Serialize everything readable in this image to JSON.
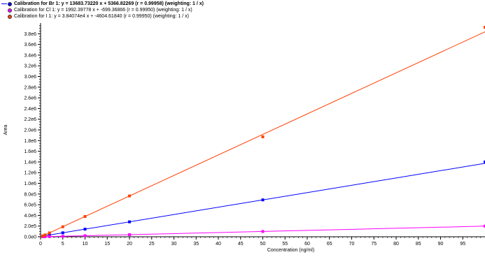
{
  "chart_data": {
    "type": "scatter",
    "xlabel": "Concentration (ng/ml)",
    "ylabel": "Area",
    "xlim": [
      0,
      100
    ],
    "ylim": [
      0,
      4000000
    ],
    "x_ticks": [
      0,
      5,
      10,
      15,
      20,
      25,
      30,
      35,
      40,
      45,
      50,
      55,
      60,
      65,
      70,
      75,
      80,
      85,
      90,
      95
    ],
    "y_ticks": [
      0,
      200000,
      400000,
      600000,
      800000,
      1000000,
      1200000,
      1400000,
      1600000,
      1800000,
      2000000,
      2200000,
      2400000,
      2600000,
      2800000,
      3000000,
      3200000,
      3400000,
      3600000,
      3800000
    ],
    "y_tick_labels": [
      "0.0e0",
      "2.0e5",
      "4.0e5",
      "6.0e5",
      "8.0e5",
      "1.0e6",
      "1.2e6",
      "1.4e6",
      "1.6e6",
      "1.8e6",
      "2.0e6",
      "2.2e6",
      "2.4e6",
      "2.6e6",
      "2.8e6",
      "3.0e6",
      "3.2e6",
      "3.4e6",
      "3.6e6",
      "3.8e6"
    ],
    "series": [
      {
        "name": "Calibration for Br 1: y = 13683.73220 x + 5366.82269 (r = 0.99958) (weighting: 1 / x)",
        "color": "#0000ff",
        "slope": 13683.7322,
        "intercept": 5366.82269,
        "x": [
          0.5,
          1,
          2,
          5,
          10,
          20,
          50,
          100
        ],
        "y": [
          12000,
          19000,
          33000,
          74000,
          142000,
          279000,
          690000,
          1400000
        ]
      },
      {
        "name": "Calibration for Cl 1: y = 1992.39778 x + -699.36866 (r = 0.99950) (weighting: 1 / x)",
        "color": "#ff00ff",
        "slope": 1992.39778,
        "intercept": -699.36866,
        "x": [
          0.5,
          1,
          2,
          5,
          10,
          20,
          50,
          100
        ],
        "y": [
          300,
          1300,
          3300,
          9300,
          19200,
          39000,
          99000,
          199000
        ]
      },
      {
        "name": "Calibration for I 1: y = 3.84074e4 x + -4604.61840 (r = 0.99950) (weighting: 1 / x)",
        "color": "#ff4000",
        "slope": 38407.4,
        "intercept": -4604.6184,
        "x": [
          0.5,
          1,
          2,
          5,
          10,
          20,
          50,
          100
        ],
        "y": [
          15000,
          34000,
          72000,
          187000,
          379000,
          764000,
          1870000,
          3920000
        ]
      }
    ]
  }
}
